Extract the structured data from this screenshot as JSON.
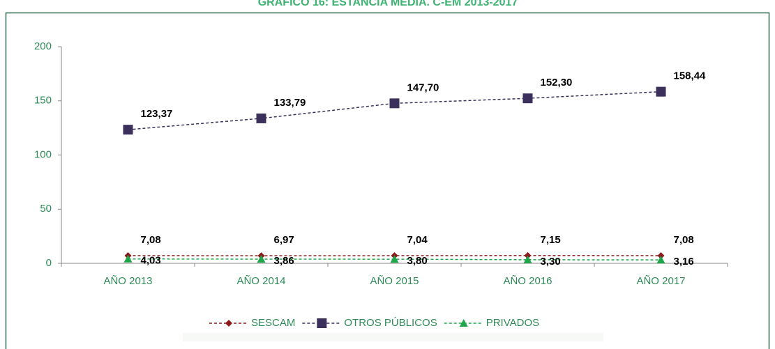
{
  "chart_data": {
    "type": "line",
    "title": "GRÁFICO 16: ESTANCIA MEDIA. C-EM 2013-2017",
    "categories": [
      "AÑO 2013",
      "AÑO 2014",
      "AÑO 2015",
      "AÑO 2016",
      "AÑO 2017"
    ],
    "series": [
      {
        "name": "SESCAM",
        "color": "#8b1a1a",
        "marker": "diamond",
        "values": [
          7.08,
          6.97,
          7.04,
          7.15,
          7.08
        ],
        "value_labels": [
          "7,08",
          "6,97",
          "7,04",
          "7,15",
          "7,08"
        ],
        "label_position": "above"
      },
      {
        "name": "OTROS PÚBLICOS",
        "color": "#3b2f5c",
        "marker": "square",
        "values": [
          123.37,
          133.79,
          147.7,
          152.3,
          158.44
        ],
        "value_labels": [
          "123,37",
          "133,79",
          "147,70",
          "152,30",
          "158,44"
        ],
        "label_position": "above"
      },
      {
        "name": "PRIVADOS",
        "color": "#1fa64a",
        "marker": "triangle",
        "values": [
          4.03,
          3.86,
          3.8,
          3.3,
          3.16
        ],
        "value_labels": [
          "4,03",
          "3,86",
          "3,80",
          "3,30",
          "3,16"
        ],
        "label_position": "below"
      }
    ],
    "ylim": [
      0,
      200
    ],
    "yticks": [
      0,
      50,
      100,
      150,
      200
    ],
    "legend": "bottom",
    "grid": false
  }
}
